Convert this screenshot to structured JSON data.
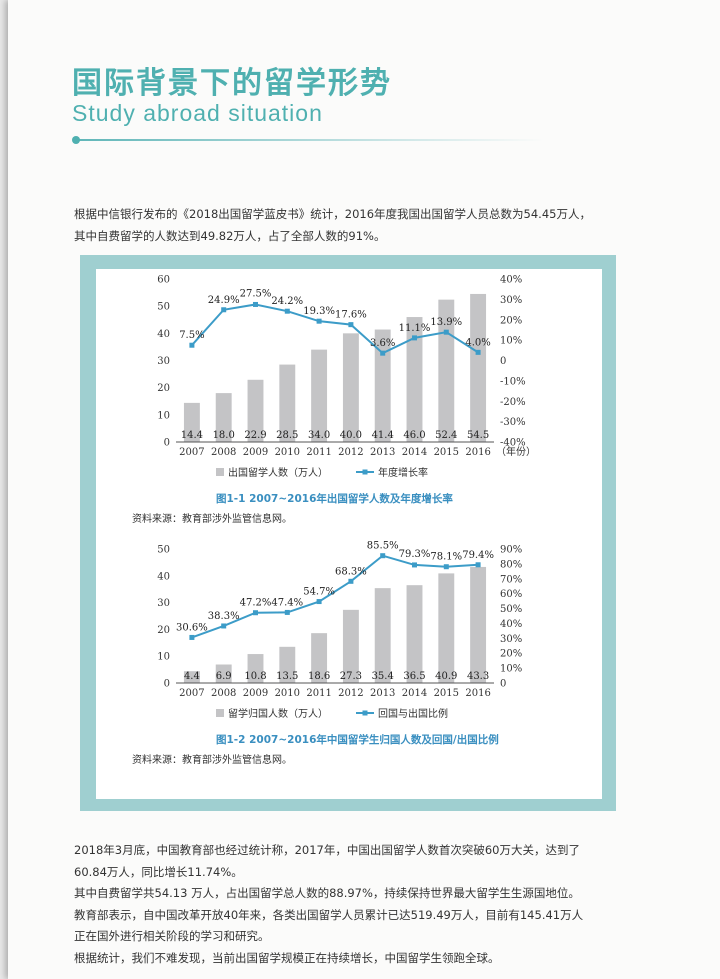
{
  "header": {
    "title_cn": "国际背景下的留学形势",
    "title_en": "Study abroad situation"
  },
  "intro": {
    "lines": [
      "根据中信银行发布的《2018出国留学蓝皮书》统计，2016年度我国出国留学人员总数为54.45万人，",
      "其中自费留学的人数达到49.82万人，占了全部人数的91%。"
    ]
  },
  "chart_data": [
    {
      "type": "bar",
      "categories": [
        "2007",
        "2008",
        "2009",
        "2010",
        "2011",
        "2012",
        "2013",
        "2014",
        "2015",
        "2016"
      ],
      "x_unit_label": "（年份）",
      "series": [
        {
          "name": "出国留学人数（万人）",
          "type": "bar",
          "axis": "left",
          "values": [
            14.4,
            18.0,
            22.9,
            28.5,
            34.0,
            40.0,
            41.4,
            46.0,
            52.4,
            54.5
          ],
          "labels": [
            "14.4",
            "18.0",
            "22.9",
            "28.5",
            "34.0",
            "40.0",
            "41.4",
            "46.0",
            "52.4",
            "54.5"
          ]
        },
        {
          "name": "年度增长率",
          "type": "line",
          "axis": "right",
          "values": [
            7.5,
            24.9,
            27.5,
            24.2,
            19.3,
            17.6,
            3.6,
            11.1,
            13.9,
            4.0
          ],
          "labels": [
            "7.5%",
            "24.9%",
            "27.5%",
            "24.2%",
            "19.3%",
            "17.6%",
            "3.6%",
            "11.1%",
            "13.9%",
            "4.0%"
          ]
        }
      ],
      "ylim": [
        0,
        60
      ],
      "yticks": [
        "0",
        "10",
        "20",
        "30",
        "40",
        "50",
        "60"
      ],
      "y2lim": [
        -40,
        40
      ],
      "y2ticks": [
        "-40%",
        "-30%",
        "-20%",
        "-10%",
        "0",
        "10%",
        "20%",
        "30%",
        "40%"
      ],
      "title": "图1-1   2007~2016年出国留学人数及年度增长率",
      "source": "资料来源：教育部涉外监管信息网。",
      "colors": {
        "bar": "#c4c4c6",
        "line": "#3c9cc8"
      }
    },
    {
      "type": "bar",
      "categories": [
        "2007",
        "2008",
        "2009",
        "2010",
        "2011",
        "2012",
        "2013",
        "2014",
        "2015",
        "2016"
      ],
      "series": [
        {
          "name": "留学归国人数（万人）",
          "type": "bar",
          "axis": "left",
          "values": [
            4.4,
            6.9,
            10.8,
            13.5,
            18.6,
            27.3,
            35.4,
            36.5,
            40.9,
            43.3
          ],
          "labels": [
            "4.4",
            "6.9",
            "10.8",
            "13.5",
            "18.6",
            "27.3",
            "35.4",
            "36.5",
            "40.9",
            "43.3"
          ]
        },
        {
          "name": "回国与出国比例",
          "type": "line",
          "axis": "right",
          "values": [
            30.6,
            38.3,
            47.2,
            47.4,
            54.7,
            68.3,
            85.5,
            79.3,
            78.1,
            79.4
          ],
          "labels": [
            "30.6%",
            "38.3%",
            "47.2%",
            "47.4%",
            "54.7%",
            "68.3%",
            "85.5%",
            "79.3%",
            "78.1%",
            "79.4%"
          ]
        }
      ],
      "ylim": [
        0,
        50
      ],
      "yticks": [
        "0",
        "10",
        "20",
        "30",
        "40",
        "50"
      ],
      "y2lim": [
        0,
        90
      ],
      "y2ticks": [
        "0",
        "10%",
        "20%",
        "30%",
        "40%",
        "50%",
        "60%",
        "70%",
        "80%",
        "90%"
      ],
      "title": "图1-2   2007~2016年中国留学生归国人数及回国/出国比例",
      "source": "资料来源：教育部涉外监管信息网。",
      "colors": {
        "bar": "#c4c4c6",
        "line": "#3c9cc8"
      }
    }
  ],
  "body": {
    "lines": [
      "2018年3月底，中国教育部也经过统计称，2017年，中国出国留学人数首次突破60万大关，达到了",
      "60.84万人，同比增长11.74%。",
      "其中自费留学共54.13 万人，占出国留学总人数的88.97%，持续保持世界最大留学生生源国地位。",
      "教育部表示，自中国改革开放40年来，各类出国留学人员累计已达519.49万人，目前有145.41万人",
      "正在国外进行相关阶段的学习和研究。",
      "根据统计，我们不难发现，当前出国留学规模正在持续增长，中国留学生领跑全球。"
    ]
  }
}
